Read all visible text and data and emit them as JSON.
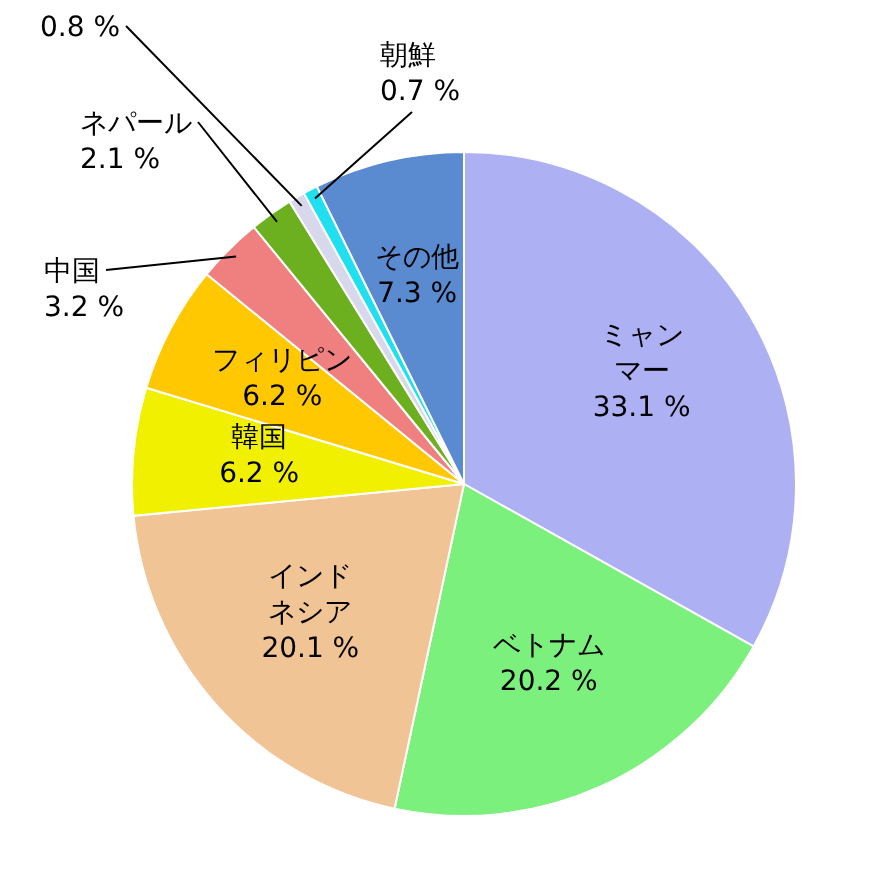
{
  "chart_data": {
    "type": "pie",
    "categories": [
      "ミャンマー",
      "ベトナム",
      "インドネシア",
      "韓国",
      "フィリピン",
      "中国",
      "ネパール",
      null,
      "朝鮮",
      "その他"
    ],
    "values": [
      33.1,
      20.2,
      20.1,
      6.2,
      6.2,
      3.2,
      2.1,
      0.8,
      0.7,
      7.3
    ],
    "value_labels": [
      "33.1 %",
      "20.2 %",
      "20.1 %",
      "6.2 %",
      "6.2 %",
      "3.2 %",
      "2.1 %",
      "0.8 %",
      "0.7 %",
      "7.3 %"
    ],
    "colors": [
      "#aeb0f4",
      "#7cf07c",
      "#f0c494",
      "#f0f000",
      "#ffc800",
      "#f08080",
      "#6cb020",
      "#d8d8ec",
      "#20e0f0",
      "#5a8ad0"
    ]
  }
}
